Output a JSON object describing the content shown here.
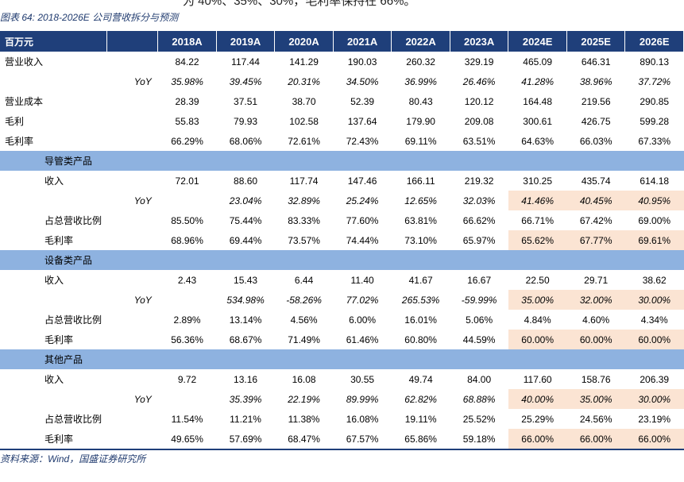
{
  "top_text": "为 40%、35%、30%，毛利率保持在 66%。",
  "caption": "图表 64:  2018-2026E 公司营收拆分与预测",
  "source": "资料来源：Wind，国盛证券研究所",
  "table": {
    "unit_label": "百万元",
    "years": [
      "2018A",
      "2019A",
      "2020A",
      "2021A",
      "2022A",
      "2023A",
      "2024E",
      "2025E",
      "2026E"
    ],
    "highlight_color": "#fbe4d3",
    "header_color": "#1f3f7a",
    "section_color": "#8eb2e0",
    "rows": [
      {
        "label": "营业收入",
        "yoy": "",
        "values": [
          "84.22",
          "117.44",
          "141.29",
          "190.03",
          "260.32",
          "329.19",
          "465.09",
          "646.31",
          "890.13"
        ]
      },
      {
        "label": "",
        "yoy": "YoY",
        "values": [
          "35.98%",
          "39.45%",
          "20.31%",
          "34.50%",
          "36.99%",
          "26.46%",
          "41.28%",
          "38.96%",
          "37.72%"
        ]
      },
      {
        "label": "营业成本",
        "yoy": "",
        "values": [
          "28.39",
          "37.51",
          "38.70",
          "52.39",
          "80.43",
          "120.12",
          "164.48",
          "219.56",
          "290.85"
        ]
      },
      {
        "label": "毛利",
        "yoy": "",
        "values": [
          "55.83",
          "79.93",
          "102.58",
          "137.64",
          "179.90",
          "209.08",
          "300.61",
          "426.75",
          "599.28"
        ]
      },
      {
        "label": "毛利率",
        "yoy": "",
        "values": [
          "66.29%",
          "68.06%",
          "72.61%",
          "72.43%",
          "69.11%",
          "63.51%",
          "64.63%",
          "66.03%",
          "67.33%"
        ]
      },
      {
        "section": "导管类产品"
      },
      {
        "label": "收入",
        "yoy": "",
        "values": [
          "72.01",
          "88.60",
          "117.74",
          "147.46",
          "166.11",
          "219.32",
          "310.25",
          "435.74",
          "614.18"
        ]
      },
      {
        "label": "",
        "yoy": "YoY",
        "values": [
          "",
          "23.04%",
          "32.89%",
          "25.24%",
          "12.65%",
          "32.03%",
          "41.46%",
          "40.45%",
          "40.95%"
        ],
        "hl": true
      },
      {
        "label": "占总营收比例",
        "yoy": "",
        "values": [
          "85.50%",
          "75.44%",
          "83.33%",
          "77.60%",
          "63.81%",
          "66.62%",
          "66.71%",
          "67.42%",
          "69.00%"
        ]
      },
      {
        "label": "毛利率",
        "yoy": "",
        "values": [
          "68.96%",
          "69.44%",
          "73.57%",
          "74.44%",
          "73.10%",
          "65.97%",
          "65.62%",
          "67.77%",
          "69.61%"
        ],
        "hl": true
      },
      {
        "section": "设备类产品"
      },
      {
        "label": "收入",
        "yoy": "",
        "values": [
          "2.43",
          "15.43",
          "6.44",
          "11.40",
          "41.67",
          "16.67",
          "22.50",
          "29.71",
          "38.62"
        ]
      },
      {
        "label": "",
        "yoy": "YoY",
        "values": [
          "",
          "534.98%",
          "-58.26%",
          "77.02%",
          "265.53%",
          "-59.99%",
          "35.00%",
          "32.00%",
          "30.00%"
        ],
        "hl": true
      },
      {
        "label": "占总营收比例",
        "yoy": "",
        "values": [
          "2.89%",
          "13.14%",
          "4.56%",
          "6.00%",
          "16.01%",
          "5.06%",
          "4.84%",
          "4.60%",
          "4.34%"
        ]
      },
      {
        "label": "毛利率",
        "yoy": "",
        "values": [
          "56.36%",
          "68.67%",
          "71.49%",
          "61.46%",
          "60.80%",
          "44.59%",
          "60.00%",
          "60.00%",
          "60.00%"
        ],
        "hl": true
      },
      {
        "section": "其他产品"
      },
      {
        "label": "收入",
        "yoy": "",
        "values": [
          "9.72",
          "13.16",
          "16.08",
          "30.55",
          "49.74",
          "84.00",
          "117.60",
          "158.76",
          "206.39"
        ]
      },
      {
        "label": "",
        "yoy": "YoY",
        "values": [
          "",
          "35.39%",
          "22.19%",
          "89.99%",
          "62.82%",
          "68.88%",
          "40.00%",
          "35.00%",
          "30.00%"
        ],
        "hl": true
      },
      {
        "label": "占总营收比例",
        "yoy": "",
        "values": [
          "11.54%",
          "11.21%",
          "11.38%",
          "16.08%",
          "19.11%",
          "25.52%",
          "25.29%",
          "24.56%",
          "23.19%"
        ]
      },
      {
        "label": "毛利率",
        "yoy": "",
        "values": [
          "49.65%",
          "57.69%",
          "68.47%",
          "67.57%",
          "65.86%",
          "59.18%",
          "66.00%",
          "66.00%",
          "66.00%"
        ],
        "hl": true
      }
    ]
  }
}
